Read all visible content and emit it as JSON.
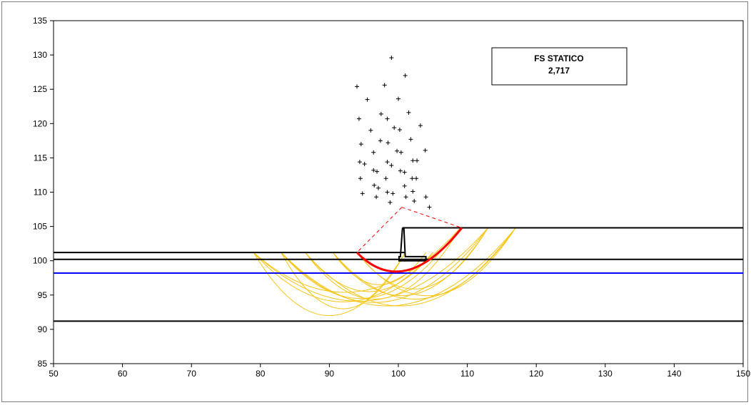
{
  "chart_data": {
    "type": "scatter",
    "title": "",
    "xlabel": "",
    "ylabel": "",
    "xlim": [
      50,
      150
    ],
    "ylim": [
      85,
      135
    ],
    "x_ticks": [
      50,
      60,
      70,
      80,
      90,
      100,
      110,
      120,
      130,
      140,
      150
    ],
    "y_ticks": [
      85,
      90,
      95,
      100,
      105,
      110,
      115,
      120,
      125,
      130,
      135
    ],
    "x_tick_labels": [
      "50",
      "60",
      "70",
      "80",
      "90",
      "100",
      "110",
      "120",
      "130",
      "140",
      "150"
    ],
    "y_tick_labels": [
      "85",
      "90",
      "95",
      "100",
      "105",
      "110",
      "115",
      "120",
      "125",
      "130",
      "135"
    ],
    "grid": false,
    "annotation_box": {
      "label": "FS  STATICO",
      "value": "2,717"
    },
    "colors": {
      "layer": "#000000",
      "water_table": "#0000ff",
      "trial_surfaces": "#f5c518",
      "critical_surface": "#ff0000",
      "critical_radius": "#ff0000",
      "centers": "#000000"
    },
    "layers": [
      {
        "points": [
          [
            50,
            101.2
          ],
          [
            101,
            101.2
          ]
        ]
      },
      {
        "points": [
          [
            50,
            100.2
          ],
          [
            150,
            100.2
          ]
        ]
      },
      {
        "points": [
          [
            50,
            91.2
          ],
          [
            150,
            91.2
          ]
        ]
      },
      {
        "points": [
          [
            100.6,
            104.8
          ],
          [
            150,
            104.8
          ]
        ]
      }
    ],
    "water_table": {
      "y": 98.2,
      "x_range": [
        50,
        150
      ]
    },
    "retaining_wall": {
      "outline": [
        [
          100.6,
          104.8
        ],
        [
          100.8,
          104.8
        ],
        [
          101.0,
          100.6
        ],
        [
          104.0,
          100.6
        ],
        [
          104.0,
          100.0
        ],
        [
          100.1,
          100.0
        ],
        [
          100.1,
          100.6
        ],
        [
          100.3,
          100.6
        ],
        [
          100.6,
          104.8
        ]
      ]
    },
    "trial_surfaces": [
      {
        "start": [
          79,
          101.2
        ],
        "end": [
          101,
          101.2
        ],
        "depth": 92
      },
      {
        "start": [
          79,
          101.2
        ],
        "end": [
          105,
          101.2
        ],
        "depth": 94
      },
      {
        "start": [
          79,
          101.2
        ],
        "end": [
          109,
          104.8
        ],
        "depth": 95.5
      },
      {
        "start": [
          83,
          101.2
        ],
        "end": [
          101,
          101.2
        ],
        "depth": 93
      },
      {
        "start": [
          83,
          101.2
        ],
        "end": [
          106,
          101.2
        ],
        "depth": 94.5
      },
      {
        "start": [
          83,
          101.2
        ],
        "end": [
          113,
          104.8
        ],
        "depth": 94
      },
      {
        "start": [
          86.5,
          101.2
        ],
        "end": [
          105,
          101.2
        ],
        "depth": 95.5
      },
      {
        "start": [
          86.5,
          101.2
        ],
        "end": [
          109,
          104.8
        ],
        "depth": 94.5
      },
      {
        "start": [
          86.5,
          101.2
        ],
        "end": [
          117,
          104.8
        ],
        "depth": 93.5
      },
      {
        "start": [
          90.5,
          101.2
        ],
        "end": [
          104,
          101.2
        ],
        "depth": 96.5
      },
      {
        "start": [
          90.5,
          101.2
        ],
        "end": [
          113,
          104.8
        ],
        "depth": 95
      },
      {
        "start": [
          90.5,
          101.2
        ],
        "end": [
          117,
          104.8
        ],
        "depth": 94.5
      },
      {
        "start": [
          94,
          101.2
        ],
        "end": [
          113,
          104.8
        ],
        "depth": 96
      },
      {
        "start": [
          94,
          101.2
        ],
        "end": [
          117,
          104.8
        ],
        "depth": 95
      },
      {
        "start": [
          79,
          101.2
        ],
        "end": [
          113,
          104.8
        ],
        "depth": 94.2
      },
      {
        "start": [
          83,
          101.2
        ],
        "end": [
          117,
          104.8
        ],
        "depth": 93.5
      }
    ],
    "critical_surface": {
      "start": [
        94,
        101.2
      ],
      "end": [
        109.2,
        104.8
      ],
      "lowest": [
        101.2,
        98.6
      ]
    },
    "critical_center": [
      100.5,
      107.8
    ],
    "centers": [
      [
        99,
        129.6
      ],
      [
        101,
        127
      ],
      [
        94,
        125.4
      ],
      [
        98,
        125.6
      ],
      [
        95.5,
        123.5
      ],
      [
        100,
        123.6
      ],
      [
        101.5,
        121.6
      ],
      [
        97.5,
        121.4
      ],
      [
        94.3,
        120.7
      ],
      [
        98.4,
        120.7
      ],
      [
        103.2,
        119.7
      ],
      [
        96,
        119
      ],
      [
        99.4,
        119.4
      ],
      [
        100.2,
        119.1
      ],
      [
        97.4,
        117.5
      ],
      [
        98.5,
        117.2
      ],
      [
        101.8,
        117.7
      ],
      [
        94.6,
        117
      ],
      [
        103.9,
        116.1
      ],
      [
        96.4,
        115.8
      ],
      [
        99.8,
        116
      ],
      [
        100.4,
        115.8
      ],
      [
        98.4,
        114.4
      ],
      [
        102.1,
        114.6
      ],
      [
        102.7,
        114.6
      ],
      [
        94.4,
        114.4
      ],
      [
        95.1,
        114.1
      ],
      [
        99,
        113.9
      ],
      [
        96.4,
        113.2
      ],
      [
        96.9,
        113
      ],
      [
        100.3,
        113.1
      ],
      [
        100.9,
        112.9
      ],
      [
        94.5,
        112
      ],
      [
        98.2,
        112
      ],
      [
        102,
        112
      ],
      [
        102.6,
        112
      ],
      [
        96.5,
        111
      ],
      [
        97.1,
        110.6
      ],
      [
        100.9,
        110.9
      ],
      [
        94.8,
        109.8
      ],
      [
        98.4,
        110
      ],
      [
        99.2,
        109.8
      ],
      [
        102.1,
        110.1
      ],
      [
        96.8,
        109.3
      ],
      [
        101.1,
        109.3
      ],
      [
        104,
        109.3
      ],
      [
        98.8,
        108.5
      ],
      [
        102.3,
        108.7
      ],
      [
        104.5,
        107.8
      ]
    ]
  }
}
